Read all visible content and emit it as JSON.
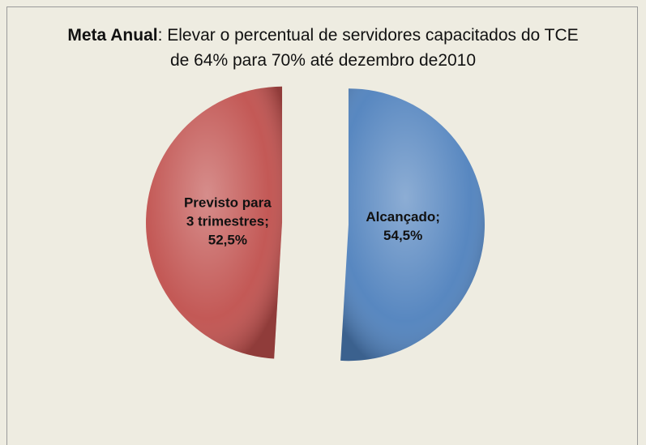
{
  "chart_data": {
    "type": "pie",
    "title": {
      "emphasis": "Meta Anual",
      "lines": [
        ": Elevar o percentual de servidores capacitados do TCE",
        "de 64% para 70% até dezembro de2010"
      ]
    },
    "categories": [
      "Alcançado",
      "Previsto para 3 trimestres"
    ],
    "values": [
      54.5,
      52.5
    ],
    "value_labels": [
      "54,5%",
      "52,5%"
    ],
    "label_separator": ";",
    "colors": [
      "#4f81bd",
      "#c0504d"
    ]
  }
}
